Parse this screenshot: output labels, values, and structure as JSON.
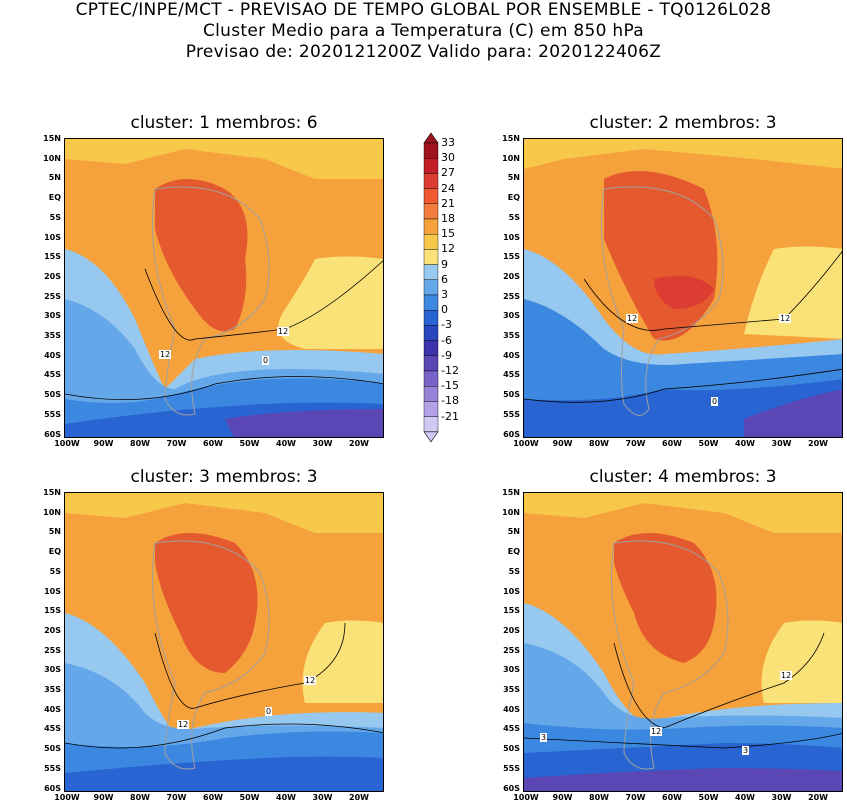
{
  "header": {
    "line1": "CPTEC/INPE/MCT - PREVISAO DE TEMPO GLOBAL POR ENSEMBLE - TQ0126L028",
    "line2": "Cluster Medio para a Temperatura (C) em 850 hPa",
    "line3": "Previsao de: 2020121200Z   Valido para: 2020122406Z"
  },
  "panels": [
    {
      "title": "cluster: 1  membros: 6"
    },
    {
      "title": "cluster: 2  membros: 3"
    },
    {
      "title": "cluster: 3  membros: 3"
    },
    {
      "title": "cluster: 4  membros: 3"
    }
  ],
  "lat_labels": [
    "15N",
    "10N",
    "5N",
    "EQ",
    "5S",
    "10S",
    "15S",
    "20S",
    "25S",
    "30S",
    "35S",
    "40S",
    "45S",
    "50S",
    "55S",
    "60S"
  ],
  "lon_labels": [
    "100W",
    "90W",
    "80W",
    "70W",
    "60W",
    "50W",
    "40W",
    "30W",
    "20W"
  ],
  "colorbar": {
    "levels": [
      "33",
      "30",
      "27",
      "24",
      "21",
      "18",
      "15",
      "12",
      "9",
      "6",
      "3",
      "0",
      "-3",
      "-6",
      "-9",
      "-12",
      "-15",
      "-18",
      "-21"
    ],
    "colors": [
      "#a0141e",
      "#c31e28",
      "#dc3c32",
      "#ef5a32",
      "#f37d3c",
      "#f6a23c",
      "#f8c84b",
      "#fae178",
      "#96c8f0",
      "#64a8ea",
      "#3c88e0",
      "#2864d2",
      "#2846be",
      "#3c32aa",
      "#5a46b4",
      "#7864c8",
      "#9682d7",
      "#b4a0e6",
      "#d2c8f5"
    ]
  },
  "contour_labels": {
    "p1": [
      "12",
      "12",
      "0"
    ],
    "p2": [
      "12",
      "12",
      "0"
    ],
    "p3": [
      "12",
      "12",
      "0"
    ],
    "p4": [
      "12",
      "12",
      "3",
      "3"
    ]
  },
  "palette": {
    "red": "#e45a2e",
    "orange": "#f6a23c",
    "light_orange": "#f8c84b",
    "yellow": "#fae178",
    "light_blue": "#96c8f0",
    "mid_blue": "#64a8ea",
    "blue": "#3c88e0",
    "deep_blue": "#2864d2",
    "purple": "#5a46b4",
    "coast": "#a0a0a0"
  }
}
